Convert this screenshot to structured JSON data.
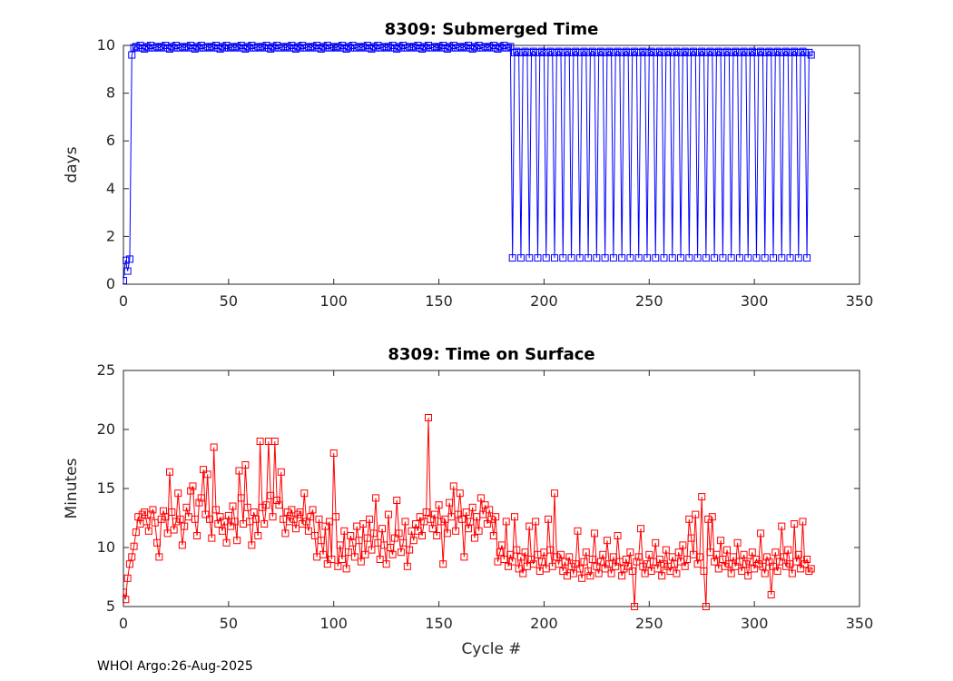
{
  "figure": {
    "footer": "WHOI Argo:26-Aug-2025"
  },
  "chart_data": [
    {
      "type": "line",
      "title": "8309: Submerged Time",
      "xlabel": "",
      "ylabel": "days",
      "xlim": [
        0,
        350
      ],
      "ylim": [
        0,
        10
      ],
      "xticks": [
        0,
        50,
        100,
        150,
        200,
        250,
        300,
        350
      ],
      "yticks": [
        0,
        2,
        4,
        6,
        8,
        10
      ],
      "grid": false,
      "legend": "none",
      "color": "#0000ff",
      "marker": "open-square",
      "x_is_cycle_index": true,
      "series": [
        {
          "name": "Submerged days per cycle",
          "values": [
            0.15,
            1.0,
            0.55,
            1.05,
            9.6,
            9.9,
            9.95,
            9.9,
            10.0,
            9.9,
            9.85,
            9.95,
            9.9,
            10.0,
            9.9,
            9.9,
            9.95,
            9.9,
            9.95,
            9.9,
            10.0,
            9.9,
            9.85,
            9.95,
            9.9,
            10.0,
            9.9,
            9.9,
            9.95,
            9.9,
            9.95,
            9.9,
            10.0,
            9.9,
            9.85,
            9.95,
            9.9,
            10.0,
            9.9,
            9.9,
            9.95,
            9.9,
            9.95,
            9.9,
            10.0,
            9.9,
            9.85,
            9.95,
            9.9,
            10.0,
            9.9,
            9.9,
            9.95,
            9.9,
            9.95,
            9.9,
            10.0,
            9.9,
            9.85,
            9.95,
            9.9,
            10.0,
            9.9,
            9.9,
            9.95,
            9.9,
            9.95,
            9.9,
            10.0,
            9.9,
            9.85,
            9.95,
            9.9,
            10.0,
            9.9,
            9.9,
            9.95,
            9.9,
            9.95,
            9.9,
            10.0,
            9.9,
            9.85,
            9.95,
            9.9,
            10.0,
            9.9,
            9.9,
            9.95,
            9.9,
            9.95,
            9.9,
            10.0,
            9.9,
            9.85,
            9.95,
            9.9,
            10.0,
            9.9,
            9.9,
            9.95,
            9.9,
            9.95,
            9.9,
            10.0,
            9.9,
            9.85,
            9.95,
            9.9,
            10.0,
            9.9,
            9.9,
            9.95,
            9.9,
            9.95,
            9.9,
            10.0,
            9.9,
            9.85,
            9.95,
            9.9,
            10.0,
            9.9,
            9.9,
            9.95,
            9.9,
            9.95,
            9.9,
            10.0,
            9.9,
            9.85,
            9.95,
            9.9,
            10.0,
            9.9,
            9.9,
            9.95,
            9.9,
            9.95,
            9.9,
            10.0,
            9.9,
            9.85,
            9.95,
            9.9,
            10.0,
            9.9,
            9.9,
            9.95,
            9.9,
            9.95,
            9.9,
            10.0,
            9.9,
            9.85,
            9.95,
            9.9,
            10.0,
            9.9,
            9.9,
            9.95,
            9.9,
            9.95,
            9.9,
            10.0,
            9.9,
            9.85,
            9.95,
            9.9,
            10.0,
            9.9,
            9.9,
            9.95,
            9.9,
            9.95,
            9.9,
            10.0,
            9.9,
            9.85,
            9.95,
            9.9,
            10.0,
            9.9,
            9.9,
            9.95,
            1.1,
            9.7,
            9.75,
            9.7,
            1.1,
            9.7,
            9.75,
            9.7,
            1.1,
            9.7,
            9.75,
            9.7,
            1.1,
            9.7,
            9.75,
            9.7,
            1.1,
            9.7,
            9.75,
            9.7,
            1.1,
            9.7,
            9.75,
            9.7,
            1.1,
            9.7,
            9.75,
            9.7,
            1.1,
            9.7,
            9.75,
            9.7,
            1.1,
            9.7,
            9.75,
            9.7,
            1.1,
            9.7,
            9.75,
            9.7,
            1.1,
            9.7,
            9.75,
            9.7,
            1.1,
            9.7,
            9.75,
            9.7,
            1.1,
            9.7,
            9.75,
            9.7,
            1.1,
            9.7,
            9.75,
            9.7,
            1.1,
            9.7,
            9.75,
            9.7,
            1.1,
            9.7,
            9.75,
            9.7,
            1.1,
            9.7,
            9.75,
            9.7,
            1.1,
            9.7,
            9.75,
            9.7,
            1.1,
            9.7,
            9.75,
            9.7,
            1.1,
            9.7,
            9.75,
            9.7,
            1.1,
            9.7,
            9.75,
            9.7,
            1.1,
            9.7,
            9.75,
            9.7,
            1.1,
            9.7,
            9.75,
            9.7,
            1.1,
            9.7,
            9.75,
            9.7,
            1.1,
            9.7,
            9.75,
            9.7,
            1.1,
            9.7,
            9.75,
            9.7,
            1.1,
            9.7,
            9.75,
            9.7,
            1.1,
            9.7,
            9.75,
            9.7,
            1.1,
            9.7,
            9.75,
            9.7,
            1.1,
            9.7,
            9.75,
            9.7,
            1.1,
            9.7,
            9.75,
            9.7,
            1.1,
            9.7,
            9.75,
            9.7,
            1.1,
            9.7,
            9.75,
            9.7,
            1.1,
            9.7,
            9.75,
            9.7,
            1.1,
            9.7,
            9.75,
            9.7,
            1.1,
            9.7,
            9.6
          ]
        }
      ]
    },
    {
      "type": "line",
      "title": "8309: Time on Surface",
      "xlabel": "Cycle #",
      "ylabel": "Minutes",
      "xlim": [
        0,
        350
      ],
      "ylim": [
        5,
        25
      ],
      "xticks": [
        0,
        50,
        100,
        150,
        200,
        250,
        300,
        350
      ],
      "yticks": [
        5,
        10,
        15,
        20,
        25
      ],
      "grid": false,
      "legend": "none",
      "color": "#ff0000",
      "marker": "open-square",
      "x_is_cycle_index": true,
      "series": [
        {
          "name": "Minutes on surface per cycle",
          "values": [
            6.2,
            5.6,
            7.4,
            8.6,
            9.2,
            10.1,
            11.3,
            12.6,
            12.0,
            12.8,
            13.0,
            12.2,
            11.4,
            12.8,
            13.2,
            12.1,
            10.4,
            9.2,
            12.4,
            13.1,
            12.6,
            11.2,
            16.4,
            13.0,
            11.5,
            12.2,
            14.6,
            12.4,
            10.2,
            11.8,
            13.4,
            12.6,
            14.8,
            15.2,
            12.4,
            11.0,
            13.8,
            14.2,
            16.6,
            12.8,
            16.2,
            12.4,
            10.8,
            18.5,
            13.2,
            12.0,
            12.6,
            11.4,
            12.2,
            10.4,
            12.7,
            11.8,
            13.5,
            12.2,
            10.6,
            16.5,
            14.2,
            12.0,
            17.0,
            13.4,
            12.2,
            10.2,
            13.0,
            12.4,
            11.0,
            19.0,
            13.4,
            12.0,
            13.6,
            19.0,
            14.4,
            12.6,
            19.0,
            14.0,
            13.6,
            16.4,
            12.4,
            11.2,
            13.0,
            12.2,
            13.2,
            12.4,
            11.6,
            12.8,
            13.0,
            12.0,
            14.6,
            12.2,
            11.4,
            12.6,
            13.2,
            11.0,
            9.2,
            12.4,
            10.6,
            9.4,
            11.8,
            8.6,
            12.2,
            9.0,
            18.0,
            12.6,
            8.4,
            10.2,
            9.0,
            11.4,
            8.2,
            9.6,
            11.0,
            10.4,
            9.2,
            11.8,
            10.6,
            8.8,
            12.0,
            9.4,
            10.8,
            12.4,
            9.8,
            11.2,
            14.2,
            10.4,
            9.0,
            11.6,
            10.2,
            8.6,
            12.8,
            10.0,
            9.4,
            10.8,
            14.0,
            11.2,
            9.6,
            10.4,
            12.2,
            8.4,
            9.8,
            11.4,
            10.6,
            12.0,
            11.4,
            12.6,
            11.0,
            12.2,
            13.0,
            21.0,
            12.4,
            11.6,
            12.8,
            11.0,
            13.6,
            12.2,
            8.6,
            12.4,
            11.2,
            13.8,
            12.6,
            15.2,
            11.4,
            12.8,
            14.6,
            12.4,
            9.2,
            13.0,
            11.6,
            12.2,
            13.4,
            10.8,
            12.6,
            11.4,
            14.2,
            12.8,
            13.6,
            12.0,
            13.2,
            12.4,
            11.0,
            12.6,
            8.8,
            9.6,
            10.2,
            9.0,
            12.2,
            8.4,
            9.4,
            8.8,
            12.6,
            9.8,
            8.2,
            9.2,
            7.8,
            9.6,
            8.4,
            11.8,
            9.0,
            8.6,
            12.2,
            9.4,
            8.0,
            8.8,
            9.6,
            8.2,
            12.4,
            9.8,
            8.4,
            14.6,
            9.2,
            8.6,
            9.4,
            8.0,
            8.8,
            7.6,
            9.2,
            8.4,
            7.8,
            8.6,
            11.4,
            8.2,
            7.4,
            8.8,
            9.6,
            8.0,
            7.6,
            9.0,
            11.2,
            8.4,
            7.8,
            8.8,
            9.4,
            8.2,
            10.6,
            8.6,
            7.8,
            9.2,
            8.4,
            11.0,
            8.8,
            7.6,
            8.2,
            9.0,
            8.4,
            9.6,
            8.0,
            5.0,
            8.8,
            9.2,
            11.6,
            8.4,
            7.8,
            8.6,
            9.4,
            8.0,
            8.8,
            10.4,
            8.2,
            9.0,
            7.6,
            8.6,
            9.8,
            8.4,
            8.0,
            9.2,
            8.6,
            7.8,
            9.6,
            8.8,
            10.2,
            8.4,
            9.0,
            12.4,
            10.8,
            9.4,
            12.8,
            8.6,
            9.2,
            14.3,
            8.0,
            5.0,
            12.4,
            9.6,
            12.6,
            8.8,
            9.4,
            8.2,
            10.6,
            9.0,
            8.4,
            9.8,
            8.6,
            7.8,
            9.2,
            8.4,
            10.4,
            8.8,
            8.0,
            9.4,
            8.6,
            7.6,
            8.8,
            9.6,
            8.2,
            9.0,
            8.6,
            11.2,
            8.4,
            7.8,
            9.2,
            8.8,
            6.0,
            8.4,
            9.6,
            8.0,
            8.8,
            11.8,
            9.2,
            8.4,
            9.8,
            8.6,
            7.8,
            12.0,
            8.8,
            9.4,
            8.2,
            12.2,
            8.6,
            9.0,
            8.0,
            8.2
          ]
        }
      ]
    }
  ]
}
